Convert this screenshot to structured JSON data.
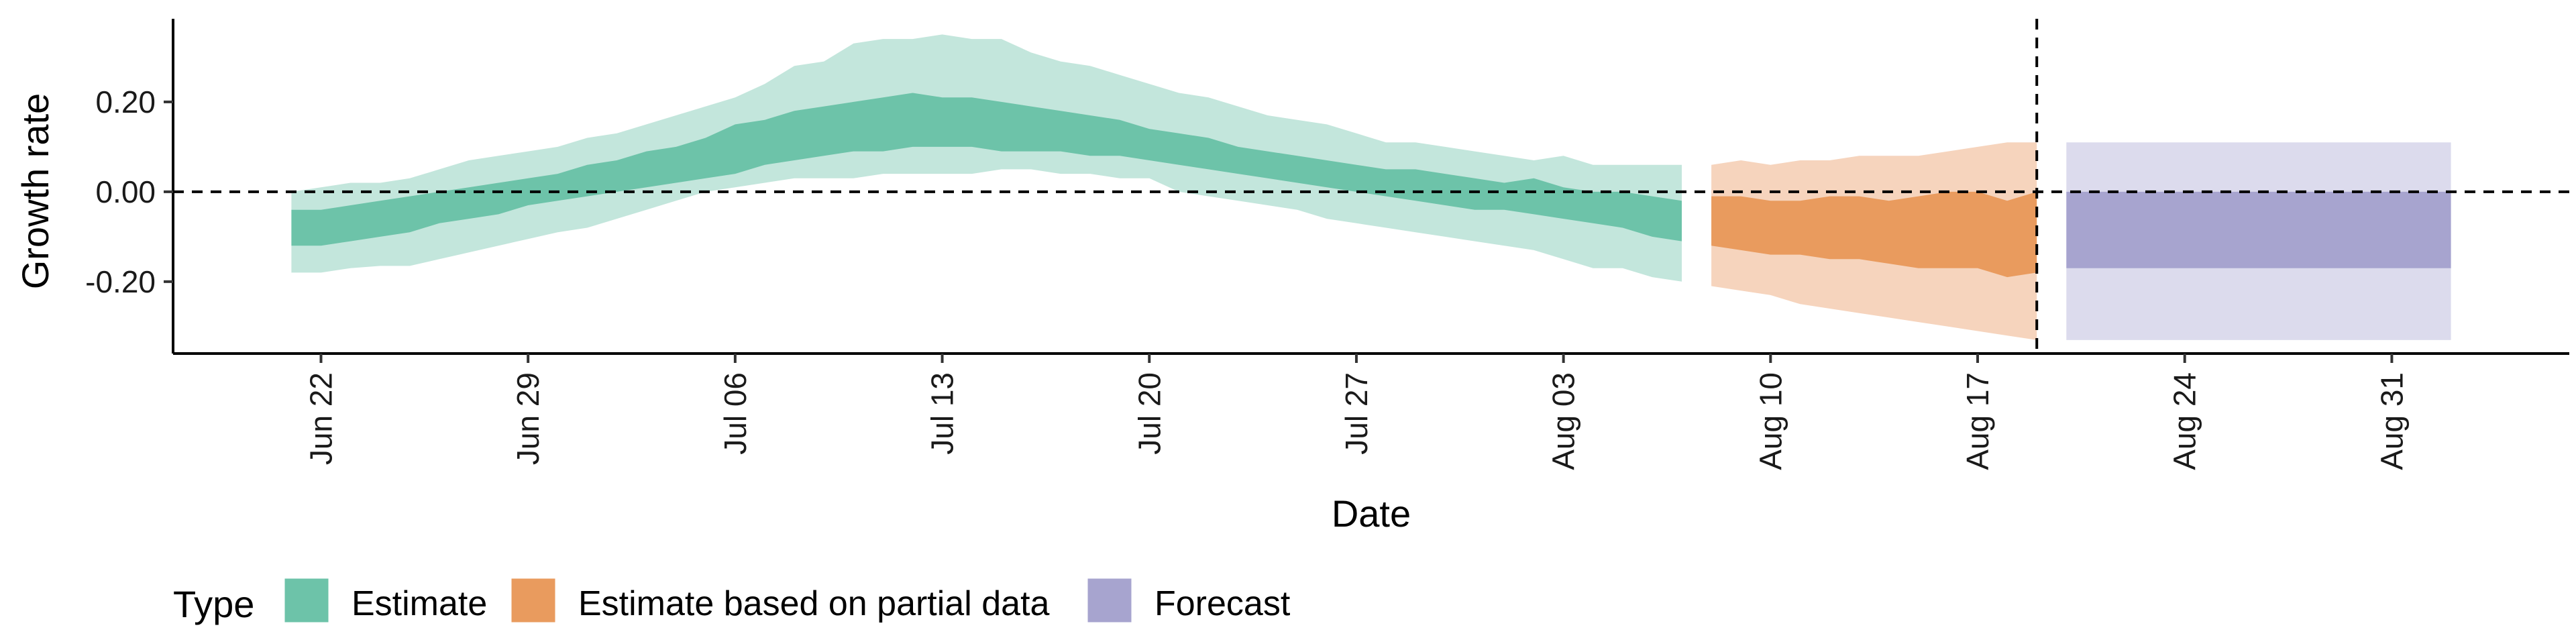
{
  "chart_data": {
    "type": "area",
    "title": "",
    "xlabel": "Date",
    "ylabel": "Growth rate",
    "x_range": [
      "2020-06-17",
      "2020-09-06"
    ],
    "ylim": [
      -0.36,
      0.385
    ],
    "y_ticks": [
      -0.2,
      0.0,
      0.2
    ],
    "y_tick_labels": [
      "-0.20",
      "0.00",
      "0.20"
    ],
    "x_ticks": [
      "2020-06-22",
      "2020-06-29",
      "2020-07-06",
      "2020-07-13",
      "2020-07-20",
      "2020-07-27",
      "2020-08-03",
      "2020-08-10",
      "2020-08-17",
      "2020-08-24",
      "2020-08-31"
    ],
    "x_tick_labels": [
      "Jun 22",
      "Jun 29",
      "Jul 06",
      "Jul 13",
      "Jul 20",
      "Jul 27",
      "Aug 03",
      "Aug 10",
      "Aug 17",
      "Aug 24",
      "Aug 31"
    ],
    "grid": false,
    "reference_lines": [
      {
        "axis": "y",
        "value": 0,
        "style": "dashed"
      },
      {
        "axis": "x",
        "value": "2020-08-19",
        "style": "dashed"
      }
    ],
    "legend": {
      "title": "Type",
      "position": "bottom-left",
      "entries": [
        {
          "label": "Estimate",
          "color": "#6dc3a9"
        },
        {
          "label": "Estimate based on partial data",
          "color": "#e99b5e"
        },
        {
          "label": "Forecast",
          "color": "#a7a4cf"
        }
      ]
    },
    "series": [
      {
        "type_label": "Estimate",
        "inner_color": "#6dc3a9",
        "outer_color": "#c3e6dc",
        "x": [
          "2020-06-21",
          "2020-06-22",
          "2020-06-23",
          "2020-06-24",
          "2020-06-25",
          "2020-06-26",
          "2020-06-27",
          "2020-06-28",
          "2020-06-29",
          "2020-06-30",
          "2020-07-01",
          "2020-07-02",
          "2020-07-03",
          "2020-07-04",
          "2020-07-05",
          "2020-07-06",
          "2020-07-07",
          "2020-07-08",
          "2020-07-09",
          "2020-07-10",
          "2020-07-11",
          "2020-07-12",
          "2020-07-13",
          "2020-07-14",
          "2020-07-15",
          "2020-07-16",
          "2020-07-17",
          "2020-07-18",
          "2020-07-19",
          "2020-07-20",
          "2020-07-21",
          "2020-07-22",
          "2020-07-23",
          "2020-07-24",
          "2020-07-25",
          "2020-07-26",
          "2020-07-27",
          "2020-07-28",
          "2020-07-29",
          "2020-07-30",
          "2020-07-31",
          "2020-08-01",
          "2020-08-02",
          "2020-08-03",
          "2020-08-04",
          "2020-08-05",
          "2020-08-06",
          "2020-08-07"
        ],
        "lower_90": [
          -0.18,
          -0.18,
          -0.17,
          -0.165,
          -0.165,
          -0.15,
          -0.135,
          -0.12,
          -0.105,
          -0.09,
          -0.08,
          -0.06,
          -0.04,
          -0.02,
          0.0,
          0.01,
          0.02,
          0.03,
          0.03,
          0.03,
          0.04,
          0.04,
          0.04,
          0.04,
          0.05,
          0.05,
          0.04,
          0.04,
          0.03,
          0.03,
          0.0,
          -0.01,
          -0.02,
          -0.03,
          -0.04,
          -0.06,
          -0.07,
          -0.08,
          -0.09,
          -0.1,
          -0.11,
          -0.12,
          -0.13,
          -0.15,
          -0.17,
          -0.17,
          -0.19,
          -0.2
        ],
        "upper_90": [
          0.0,
          0.01,
          0.02,
          0.02,
          0.03,
          0.05,
          0.07,
          0.08,
          0.09,
          0.1,
          0.12,
          0.13,
          0.15,
          0.17,
          0.19,
          0.21,
          0.24,
          0.28,
          0.29,
          0.33,
          0.34,
          0.34,
          0.35,
          0.34,
          0.34,
          0.31,
          0.29,
          0.28,
          0.26,
          0.24,
          0.22,
          0.21,
          0.19,
          0.17,
          0.16,
          0.15,
          0.13,
          0.11,
          0.11,
          0.1,
          0.09,
          0.08,
          0.07,
          0.08,
          0.06,
          0.06,
          0.06,
          0.06
        ],
        "lower_50": [
          -0.12,
          -0.12,
          -0.11,
          -0.1,
          -0.09,
          -0.07,
          -0.06,
          -0.05,
          -0.03,
          -0.02,
          -0.01,
          0.0,
          0.01,
          0.02,
          0.03,
          0.04,
          0.06,
          0.07,
          0.08,
          0.09,
          0.09,
          0.1,
          0.1,
          0.1,
          0.09,
          0.09,
          0.09,
          0.08,
          0.08,
          0.07,
          0.06,
          0.05,
          0.04,
          0.03,
          0.02,
          0.01,
          0.0,
          -0.01,
          -0.02,
          -0.03,
          -0.04,
          -0.04,
          -0.05,
          -0.06,
          -0.07,
          -0.08,
          -0.1,
          -0.11
        ],
        "upper_50": [
          -0.04,
          -0.04,
          -0.03,
          -0.02,
          -0.01,
          0.0,
          0.01,
          0.02,
          0.03,
          0.04,
          0.06,
          0.07,
          0.09,
          0.1,
          0.12,
          0.15,
          0.16,
          0.18,
          0.19,
          0.2,
          0.21,
          0.22,
          0.21,
          0.21,
          0.2,
          0.19,
          0.18,
          0.17,
          0.16,
          0.14,
          0.13,
          0.12,
          0.1,
          0.09,
          0.08,
          0.07,
          0.06,
          0.05,
          0.05,
          0.04,
          0.03,
          0.02,
          0.03,
          0.01,
          0.0,
          0.0,
          -0.01,
          -0.02
        ]
      },
      {
        "type_label": "Estimate based on partial data",
        "inner_color": "#e99b5e",
        "outer_color": "#f6d4bd",
        "x": [
          "2020-08-08",
          "2020-08-09",
          "2020-08-10",
          "2020-08-11",
          "2020-08-12",
          "2020-08-13",
          "2020-08-14",
          "2020-08-15",
          "2020-08-16",
          "2020-08-17",
          "2020-08-18",
          "2020-08-19"
        ],
        "lower_90": [
          -0.21,
          -0.22,
          -0.23,
          -0.25,
          -0.26,
          -0.27,
          -0.28,
          -0.29,
          -0.3,
          -0.31,
          -0.32,
          -0.33
        ],
        "upper_90": [
          0.06,
          0.07,
          0.06,
          0.07,
          0.07,
          0.08,
          0.08,
          0.08,
          0.09,
          0.1,
          0.11,
          0.11
        ],
        "lower_50": [
          -0.12,
          -0.13,
          -0.14,
          -0.14,
          -0.15,
          -0.15,
          -0.16,
          -0.17,
          -0.17,
          -0.17,
          -0.19,
          -0.18
        ],
        "upper_50": [
          -0.01,
          -0.01,
          -0.02,
          -0.02,
          -0.01,
          -0.01,
          -0.02,
          -0.01,
          0.0,
          0.0,
          -0.02,
          0.0
        ]
      },
      {
        "type_label": "Forecast",
        "inner_color": "#a7a4cf",
        "outer_color": "#dcdbed",
        "x": [
          "2020-08-20",
          "2020-09-02"
        ],
        "lower_90": [
          -0.33,
          -0.33
        ],
        "upper_90": [
          0.11,
          0.11
        ],
        "lower_50": [
          -0.17,
          -0.17
        ],
        "upper_50": [
          0.0,
          0.0
        ]
      }
    ]
  }
}
